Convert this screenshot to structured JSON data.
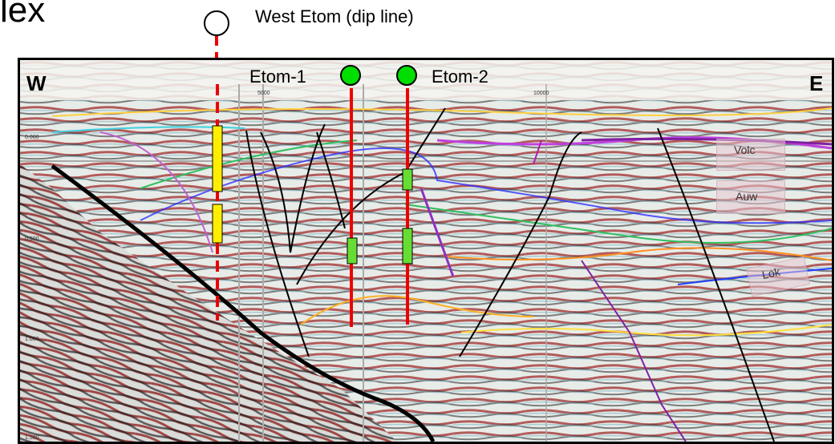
{
  "title_fragment": "lex",
  "line_title": "West Etom (dip line)",
  "side_labels": {
    "west": "W",
    "east": "E"
  },
  "wells": [
    {
      "name": "Etom-1",
      "status": "drilled"
    },
    {
      "name": "Etom-2",
      "status": "drilled"
    }
  ],
  "proposed_well": {
    "name": "",
    "status": "proposed"
  },
  "zone_labels": [
    "Volc",
    "Auw",
    "Lok"
  ],
  "time_ticks": [
    "0.000",
    "0.500",
    "1.000",
    "1.500"
  ],
  "trace_ticks": [
    "5000",
    "10000"
  ],
  "colors": {
    "drilled_well": "#00dd00",
    "proposed_well": "#ffffff",
    "well_line": "#ee0000",
    "pay_proposed": "#ffee00",
    "pay_drilled": "#66dd33"
  }
}
